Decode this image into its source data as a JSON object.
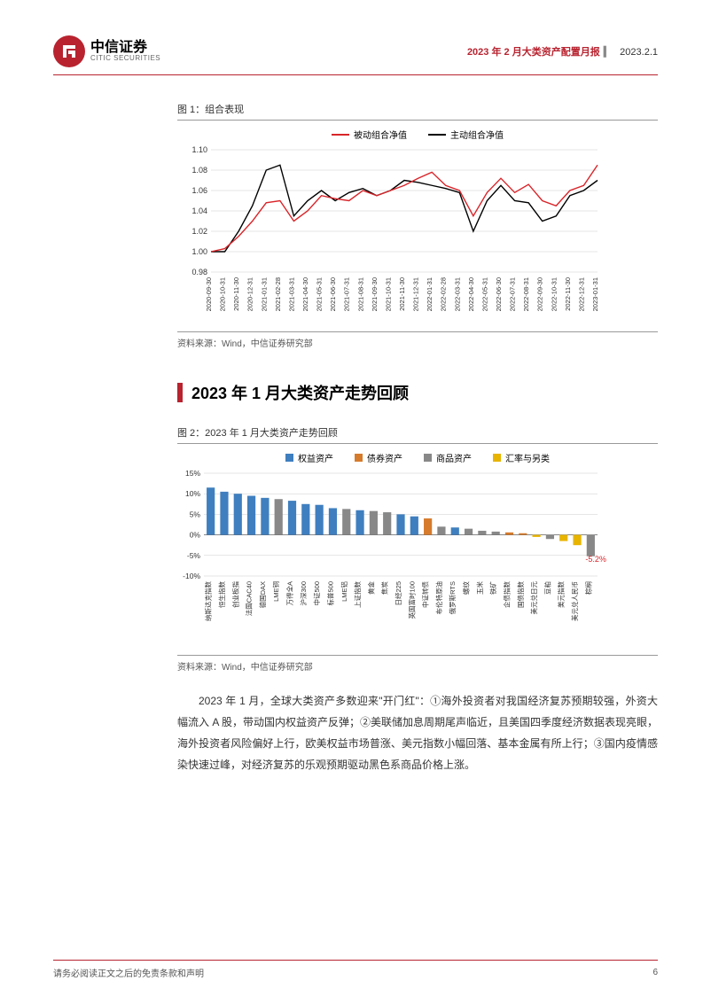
{
  "header": {
    "brand_cn": "中信证券",
    "brand_en": "CITIC SECURITIES",
    "title": "2023 年 2 月大类资产配置月报",
    "date": "2023.2.1"
  },
  "fig1": {
    "label": "图 1：组合表现",
    "source": "资料来源：Wind，中信证券研究部",
    "legend": [
      {
        "label": "被动组合净值",
        "color": "#d9252a"
      },
      {
        "label": "主动组合净值",
        "color": "#000000"
      }
    ],
    "ylim": [
      0.98,
      1.1
    ],
    "yticks": [
      0.98,
      1.0,
      1.02,
      1.04,
      1.06,
      1.08,
      1.1
    ],
    "xticks": [
      "2020-09-30",
      "2020-10-31",
      "2020-11-30",
      "2020-12-31",
      "2021-01-31",
      "2021-02-28",
      "2021-03-31",
      "2021-04-30",
      "2021-05-31",
      "2021-06-30",
      "2021-07-31",
      "2021-08-31",
      "2021-09-30",
      "2021-10-31",
      "2021-11-30",
      "2021-12-31",
      "2022-01-31",
      "2022-02-28",
      "2022-03-31",
      "2022-04-30",
      "2022-05-31",
      "2022-06-30",
      "2022-07-31",
      "2022-08-31",
      "2022-09-30",
      "2022-10-31",
      "2022-11-30",
      "2022-12-31",
      "2023-01-31"
    ],
    "series": {
      "passive": [
        1.0,
        1.003,
        1.015,
        1.03,
        1.048,
        1.05,
        1.03,
        1.04,
        1.055,
        1.052,
        1.05,
        1.06,
        1.055,
        1.06,
        1.065,
        1.072,
        1.078,
        1.065,
        1.06,
        1.035,
        1.058,
        1.072,
        1.058,
        1.066,
        1.05,
        1.045,
        1.06,
        1.065,
        1.085
      ],
      "active": [
        1.0,
        1.0,
        1.02,
        1.045,
        1.08,
        1.085,
        1.035,
        1.05,
        1.06,
        1.05,
        1.058,
        1.062,
        1.055,
        1.06,
        1.07,
        1.068,
        1.065,
        1.062,
        1.058,
        1.02,
        1.05,
        1.065,
        1.05,
        1.048,
        1.03,
        1.035,
        1.055,
        1.06,
        1.07
      ]
    },
    "colors": {
      "passive": "#d9252a",
      "active": "#000000"
    },
    "grid_color": "#cccccc",
    "background": "#ffffff"
  },
  "section": {
    "title": "2023 年 1 月大类资产走势回顾"
  },
  "fig2": {
    "label": "图 2：2023 年 1 月大类资产走势回顾",
    "source": "资料来源：Wind，中信证券研究部",
    "ylim": [
      -10,
      15
    ],
    "yticks": [
      -10,
      -5,
      0,
      5,
      10,
      15
    ],
    "ytick_labels": [
      "-10%",
      "-5%",
      "0%",
      "5%",
      "10%",
      "15%"
    ],
    "legend": [
      {
        "label": "权益资产",
        "color": "#3f7fbf"
      },
      {
        "label": "债券资产",
        "color": "#d67b2c"
      },
      {
        "label": "商品资产",
        "color": "#888888"
      },
      {
        "label": "汇率与另类",
        "color": "#e8b400"
      }
    ],
    "categories": [
      "纳斯达克指数",
      "恒生指数",
      "创业板指",
      "法国CAC40",
      "德国DAX",
      "LME铜",
      "万得全A",
      "沪深300",
      "中证500",
      "标普500",
      "LME铝",
      "上证指数",
      "黄金",
      "焦炭",
      "日经225",
      "英国富时100",
      "中证转债",
      "布伦特原油",
      "俄罗斯RTS",
      "螺纹",
      "玉米",
      "铁矿",
      "企债指数",
      "国债指数",
      "美元兑日元",
      "豆粕",
      "美元指数",
      "美元兑人民币",
      "棕榈"
    ],
    "values": [
      11.5,
      10.5,
      10.0,
      9.5,
      9.0,
      8.7,
      8.3,
      7.5,
      7.3,
      6.5,
      6.3,
      6.0,
      5.8,
      5.5,
      5.0,
      4.5,
      4.0,
      2.0,
      1.8,
      1.5,
      1.0,
      0.8,
      0.6,
      0.4,
      -0.5,
      -1.0,
      -1.5,
      -2.5,
      -5.2
    ],
    "cat_type": [
      "equity",
      "equity",
      "equity",
      "equity",
      "equity",
      "commodity",
      "equity",
      "equity",
      "equity",
      "equity",
      "commodity",
      "equity",
      "commodity",
      "commodity",
      "equity",
      "equity",
      "bond",
      "commodity",
      "equity",
      "commodity",
      "commodity",
      "commodity",
      "bond",
      "bond",
      "fx",
      "commodity",
      "fx",
      "fx",
      "commodity"
    ],
    "type_colors": {
      "equity": "#3f7fbf",
      "bond": "#d67b2c",
      "commodity": "#888888",
      "fx": "#e8b400"
    },
    "annotation": {
      "label": "-5.2%",
      "color": "#d9252a"
    },
    "grid_color": "#cccccc",
    "bar_width": 0.6
  },
  "body": {
    "p1": "2023 年 1 月，全球大类资产多数迎来\"开门红\"：①海外投资者对我国经济复苏预期较强，外资大幅流入 A 股，带动国内权益资产反弹；②美联储加息周期尾声临近，且美国四季度经济数据表现亮眼，海外投资者风险偏好上行，欧美权益市场普涨、美元指数小幅回落、基本金属有所上行；③国内疫情感染快速过峰，对经济复苏的乐观预期驱动黑色系商品价格上涨。"
  },
  "footer": {
    "disclaimer": "请务必阅读正文之后的免责条款和声明",
    "page": "6"
  }
}
